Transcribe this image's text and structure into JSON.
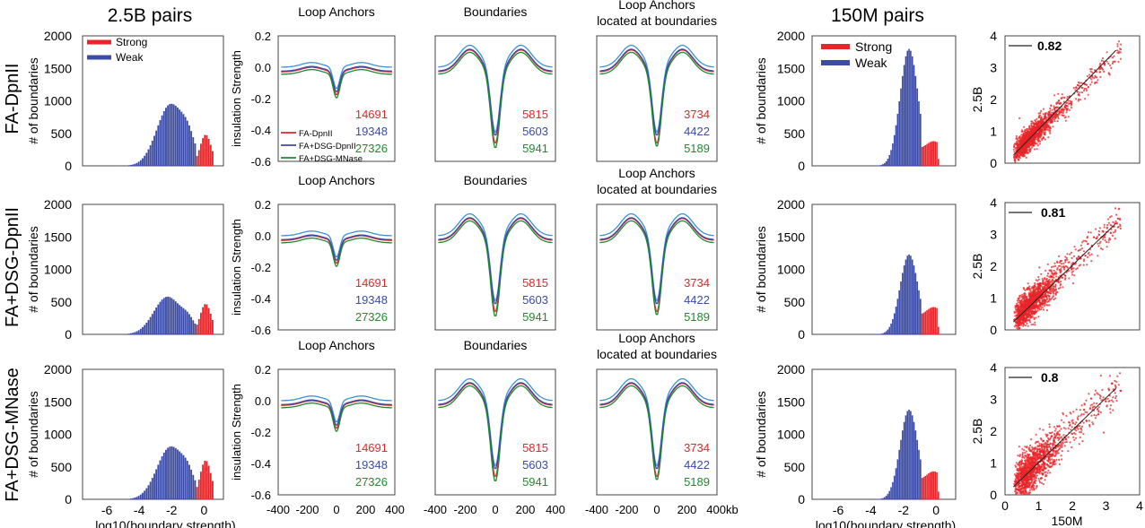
{
  "figure": {
    "section_titles": [
      "2.5B pairs",
      "150M pairs"
    ],
    "row_labels": [
      "FA-DpnII",
      "FA+DSG-DpnII",
      "FA+DSG-MNase"
    ],
    "colors": {
      "strong": "#e8252a",
      "weak": "#3b4ba6",
      "fa_dpn": "#e8252a",
      "dsg_dpn": "#3b4ba6",
      "dsg_mnase": "#1f8a2f",
      "ref_line": "#3b8fd8"
    }
  },
  "chart_data": {
    "histograms_2_5B": {
      "type": "bar",
      "ylabel": "# of boundaries",
      "xlabel": "log10(boundary strength)",
      "yticks": [
        "0",
        "500",
        "1000",
        "1500",
        "2000"
      ],
      "xticks": [
        "-6",
        "-4",
        "-2",
        "0"
      ],
      "xlim": [
        -7.5,
        1.2
      ],
      "ylim": [
        0,
        2000
      ],
      "legend": [
        "Strong",
        "Weak"
      ],
      "strong_threshold": -0.5,
      "peaks": [
        {
          "row": "FA-DpnII",
          "weak_peak_x": -2.1,
          "weak_peak_y": 950,
          "strong_peak_y": 480
        },
        {
          "row": "FA+DSG-DpnII",
          "weak_peak_x": -2.3,
          "weak_peak_y": 580,
          "strong_peak_y": 470
        },
        {
          "row": "FA+DSG-MNase",
          "weak_peak_x": -2.1,
          "weak_peak_y": 810,
          "strong_peak_y": 600
        }
      ]
    },
    "insulation_profiles": {
      "type": "line",
      "ylabel": "insulation Strength",
      "xticks": [
        "-400",
        "-200",
        "0",
        "200",
        "400"
      ],
      "last_xtick_with_unit": "400kb",
      "xlim": [
        -400,
        400
      ],
      "ylim": [
        -0.6,
        0.2
      ],
      "yticks": [
        "0.2",
        "0.0",
        "-0.2",
        "-0.4",
        "-0.6"
      ],
      "column_titles": [
        "Loop Anchors",
        "Boundaries",
        "Loop Anchors\nlocated at boundaries"
      ],
      "legend": [
        "FA-DpnII",
        "FA+DSG-DpnII",
        "FA+DSG-MNase"
      ],
      "counts": [
        [
          "14691",
          "19348",
          "27326"
        ],
        [
          "5815",
          "5603",
          "5941"
        ],
        [
          "3734",
          "4422",
          "5189"
        ]
      ],
      "dip_min": [
        [
          -0.18,
          -0.16,
          -0.2
        ],
        [
          -0.5,
          -0.45,
          -0.53
        ],
        [
          -0.5,
          -0.45,
          -0.52
        ]
      ]
    },
    "histograms_150M": {
      "type": "bar",
      "ylabel": "# of boundaries",
      "xlabel": "log10(boundary strength)",
      "yticks": [
        "0",
        "500",
        "1000",
        "1500",
        "2000"
      ],
      "xticks": [
        "-6",
        "-4",
        "-2",
        "0"
      ],
      "legend": [
        "Strong",
        "Weak"
      ],
      "peaks": [
        {
          "row": "FA-DpnII",
          "weak_peak_y": 1800,
          "strong_peak_y": 380
        },
        {
          "row": "FA+DSG-DpnII",
          "weak_peak_y": 1230,
          "strong_peak_y": 420
        },
        {
          "row": "FA+DSG-MNase",
          "weak_peak_y": 1380,
          "strong_peak_y": 430
        }
      ]
    },
    "scatter": {
      "type": "scatter",
      "xlabel": "150M",
      "ylabel": "2.5B",
      "xticks": [
        "0",
        "1",
        "2",
        "3",
        "4"
      ],
      "yticks": [
        "0",
        "1",
        "2",
        "3",
        "4"
      ],
      "xlim": [
        0,
        4
      ],
      "ylim": [
        0,
        4
      ],
      "r_values": [
        "0.82",
        "0.81",
        "0.8"
      ]
    }
  }
}
